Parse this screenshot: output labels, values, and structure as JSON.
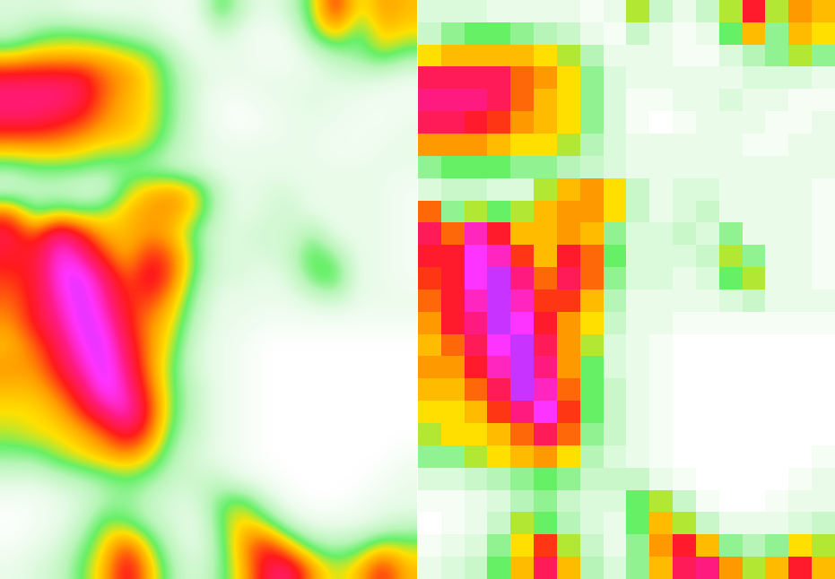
{
  "chart_data": [
    {
      "type": "heatmap",
      "clim": [
        0,
        10
      ],
      "tick_labels": false,
      "cells": [
        [
          1.5,
          1.5,
          1.5,
          1,
          1,
          1,
          1,
          0.5,
          1,
          4,
          2,
          1,
          2,
          4,
          7,
          4,
          5.5,
          5
        ],
        [
          2,
          3,
          3.5,
          3.5,
          3,
          2.5,
          2,
          1,
          0.5,
          2,
          1,
          0.5,
          1,
          3.5,
          5,
          3,
          5,
          4.5
        ],
        [
          4.5,
          5,
          5,
          5,
          5,
          4.5,
          4,
          2.5,
          1,
          1,
          1,
          0.5,
          0.5,
          1.5,
          2.5,
          3,
          4,
          3
        ],
        [
          7.5,
          7.5,
          7.5,
          7.5,
          6,
          5.5,
          4.5,
          3,
          1.5,
          1,
          1,
          1,
          1,
          1,
          1.5,
          1.5,
          1.5,
          1
        ],
        [
          8,
          8,
          8,
          7.5,
          6,
          5,
          4.5,
          3,
          1.5,
          0.5,
          0.5,
          1,
          1,
          1.5,
          1,
          1,
          0.5,
          0.5
        ],
        [
          7.5,
          7.5,
          7,
          6.5,
          5.5,
          5,
          4.5,
          3,
          1.5,
          0.5,
          0,
          0.5,
          1,
          1,
          1,
          0.5,
          0.5,
          1
        ],
        [
          5.5,
          5.5,
          5.5,
          5,
          4.5,
          4.5,
          4,
          2.5,
          1.5,
          1,
          1,
          1,
          1,
          1,
          0.5,
          0.5,
          1,
          1
        ],
        [
          3,
          3.5,
          3.5,
          3.5,
          3,
          3,
          2.5,
          2,
          1.5,
          1,
          1,
          1,
          1,
          1,
          1,
          1,
          1,
          1
        ],
        [
          1.5,
          2,
          2,
          1.5,
          1.5,
          4,
          5,
          5.5,
          4.5,
          2,
          1,
          1.5,
          1.5,
          1,
          1,
          1,
          1,
          0.5
        ],
        [
          6,
          3,
          4,
          3.5,
          4,
          5,
          5.5,
          5.5,
          4.5,
          2,
          1,
          1.5,
          2,
          1,
          1,
          1,
          1,
          0.5
        ],
        [
          7.5,
          6,
          8.5,
          7,
          5,
          5,
          5.5,
          5,
          3,
          1.5,
          1.5,
          2,
          1.5,
          3,
          1,
          1,
          1,
          0.5
        ],
        [
          7,
          7,
          9,
          8.5,
          6.5,
          5,
          7,
          6,
          3.5,
          1.5,
          1.5,
          1.5,
          2,
          4,
          3,
          1,
          1,
          0.5
        ],
        [
          6.5,
          7,
          9,
          9.5,
          8,
          6,
          7.5,
          6,
          3,
          1.5,
          1.5,
          1,
          1.5,
          3.5,
          4,
          1,
          1,
          0.5
        ],
        [
          6,
          7,
          8.5,
          9.5,
          8.5,
          6.5,
          6.5,
          5,
          2.5,
          1,
          1,
          1,
          1,
          1.5,
          2,
          1,
          1,
          1
        ],
        [
          5.5,
          7,
          8,
          9.5,
          9,
          7,
          5.5,
          4.5,
          2,
          1,
          1,
          0.5,
          0.5,
          0.5,
          0.5,
          0.5,
          0.5,
          0.5
        ],
        [
          5,
          6,
          7.5,
          9,
          9.5,
          7.5,
          5.5,
          4,
          1.5,
          1,
          0.5,
          0,
          0,
          0,
          0,
          0,
          0,
          0
        ],
        [
          5.5,
          5.5,
          7,
          8.5,
          9.5,
          8,
          5.5,
          3.5,
          1.5,
          1,
          0.5,
          0,
          0,
          0,
          0,
          0,
          0,
          0
        ],
        [
          5,
          5,
          6,
          7.5,
          9.5,
          8.5,
          6,
          3.5,
          2,
          1,
          0.5,
          0,
          0,
          0,
          0,
          0,
          0,
          0
        ],
        [
          4.5,
          4.5,
          5,
          6.5,
          8,
          9,
          6.5,
          3.5,
          2,
          1,
          0.5,
          0,
          0,
          0,
          0,
          0,
          0,
          0
        ],
        [
          4,
          4.5,
          4.5,
          5,
          6,
          7.5,
          6,
          3,
          2,
          1,
          0.5,
          0,
          0,
          0,
          0,
          0,
          0,
          0
        ],
        [
          3,
          3,
          4,
          4.5,
          5,
          5.5,
          4.5,
          2.5,
          1.5,
          1,
          0.5,
          0,
          0,
          0,
          0,
          0,
          0,
          0.5
        ],
        [
          1.5,
          1.5,
          2,
          2.5,
          3,
          3.5,
          3,
          2,
          2,
          2,
          1,
          0.5,
          0,
          0,
          0,
          0,
          0.5,
          1
        ],
        [
          0.5,
          0.5,
          1,
          1.5,
          2.5,
          3,
          2,
          1.5,
          1.5,
          3.5,
          4,
          2,
          0.5,
          0,
          0,
          0.5,
          1,
          1
        ],
        [
          0,
          0.5,
          1,
          2,
          4,
          3.5,
          2.5,
          1.5,
          1,
          3.5,
          5,
          4,
          2,
          1,
          1,
          1,
          1.5,
          2
        ],
        [
          0.5,
          1,
          1.5,
          3,
          4.5,
          6.5,
          4,
          2,
          1,
          3,
          5.5,
          7,
          5,
          3,
          2.5,
          3,
          4.5,
          4
        ],
        [
          1,
          1.5,
          2,
          3.5,
          5,
          7.5,
          5,
          2.5,
          1.5,
          3,
          5,
          7.5,
          8,
          5.5,
          4,
          5,
          7,
          5
        ]
      ]
    },
    {
      "type": "heatmap",
      "clim": [
        0,
        10
      ],
      "tick_labels": false,
      "cells": [
        [
          1.5,
          1.5,
          1.5,
          1,
          1,
          1,
          1,
          0.5,
          1,
          4,
          2,
          1,
          2,
          4,
          7,
          4,
          5.5,
          5
        ],
        [
          2,
          3,
          3.5,
          3.5,
          3,
          2.5,
          2,
          1,
          0.5,
          2,
          1,
          0.5,
          1,
          3.5,
          5,
          3,
          5,
          4.5
        ],
        [
          4.5,
          5,
          5,
          5,
          5,
          4.5,
          4,
          2.5,
          1,
          1,
          1,
          0.5,
          0.5,
          1.5,
          2.5,
          3,
          4,
          3
        ],
        [
          7.5,
          7.5,
          7.5,
          7.5,
          6,
          5.5,
          4.5,
          3,
          1.5,
          1,
          1,
          1,
          1,
          1,
          1.5,
          1.5,
          1.5,
          1
        ],
        [
          8,
          8,
          8,
          7.5,
          6,
          5,
          4.5,
          3,
          1.5,
          0.5,
          0.5,
          1,
          1,
          1.5,
          1,
          1,
          0.5,
          0.5
        ],
        [
          7.5,
          7.5,
          7,
          6.5,
          5.5,
          5,
          4.5,
          3,
          1.5,
          0.5,
          0,
          0.5,
          1,
          1,
          1,
          0.5,
          0.5,
          1
        ],
        [
          5.5,
          5.5,
          5.5,
          5,
          4.5,
          4.5,
          4,
          2.5,
          1.5,
          1,
          1,
          1,
          1,
          1,
          0.5,
          0.5,
          1,
          1
        ],
        [
          3,
          3.5,
          3.5,
          3.5,
          3,
          3,
          2.5,
          2,
          1.5,
          1,
          1,
          1,
          1,
          1,
          1,
          1,
          1,
          1
        ],
        [
          1.5,
          2,
          2,
          1.5,
          1.5,
          4,
          5,
          5.5,
          4.5,
          2,
          1,
          1.5,
          1.5,
          1,
          1,
          1,
          1,
          0.5
        ],
        [
          6,
          3,
          4,
          3.5,
          4,
          5,
          5.5,
          5.5,
          4.5,
          2,
          1,
          1.5,
          2,
          1,
          1,
          1,
          1,
          0.5
        ],
        [
          7.5,
          6,
          8.5,
          7,
          5,
          5,
          5.5,
          5,
          3,
          1.5,
          1.5,
          2,
          1.5,
          3,
          1,
          1,
          1,
          0.5
        ],
        [
          7,
          7,
          9,
          8.5,
          6.5,
          5,
          7,
          6,
          3.5,
          1.5,
          1.5,
          1.5,
          2,
          4,
          3,
          1,
          1,
          0.5
        ],
        [
          6.5,
          7,
          9,
          9.5,
          8,
          6,
          7.5,
          6,
          3,
          1.5,
          1.5,
          1,
          1.5,
          3.5,
          4,
          1,
          1,
          0.5
        ],
        [
          6,
          7,
          8.5,
          9.5,
          8.5,
          6.5,
          6.5,
          5,
          2.5,
          1,
          1,
          1,
          1,
          1.5,
          2,
          1,
          1,
          1
        ],
        [
          5.5,
          7,
          8,
          9.5,
          9,
          7,
          5.5,
          4.5,
          2,
          1,
          1,
          0.5,
          0.5,
          0.5,
          0.5,
          0.5,
          0.5,
          0.5
        ],
        [
          5,
          6,
          7.5,
          9,
          9.5,
          7.5,
          5.5,
          4,
          1.5,
          1,
          0.5,
          0,
          0,
          0,
          0,
          0,
          0,
          0
        ],
        [
          5.5,
          5.5,
          7,
          8.5,
          9.5,
          8,
          5.5,
          3.5,
          1.5,
          1,
          0.5,
          0,
          0,
          0,
          0,
          0,
          0,
          0
        ],
        [
          5,
          5,
          6,
          7.5,
          9.5,
          8.5,
          6,
          3.5,
          2,
          1,
          0.5,
          0,
          0,
          0,
          0,
          0,
          0,
          0
        ],
        [
          4.5,
          4.5,
          5,
          6.5,
          8,
          9,
          6.5,
          3.5,
          2,
          1,
          0.5,
          0,
          0,
          0,
          0,
          0,
          0,
          0
        ],
        [
          4,
          4.5,
          4.5,
          5,
          6,
          7.5,
          6,
          3,
          2,
          1,
          0.5,
          0,
          0,
          0,
          0,
          0,
          0,
          0
        ],
        [
          3,
          3,
          4,
          4.5,
          5,
          5.5,
          4.5,
          2.5,
          1.5,
          1,
          0.5,
          0,
          0,
          0,
          0,
          0,
          0,
          0.5
        ],
        [
          1.5,
          1.5,
          2,
          2.5,
          3,
          3.5,
          3,
          2,
          2,
          2,
          1,
          0.5,
          0,
          0,
          0,
          0,
          0.5,
          1
        ],
        [
          0.5,
          0.5,
          1,
          1.5,
          2.5,
          3,
          2,
          1.5,
          1.5,
          3.5,
          4,
          2,
          0.5,
          0,
          0,
          0.5,
          1,
          1
        ],
        [
          0,
          0.5,
          1,
          2,
          4,
          3.5,
          2.5,
          1.5,
          1,
          3.5,
          5,
          4,
          2,
          1,
          1,
          1,
          1.5,
          2
        ],
        [
          0.5,
          1,
          1.5,
          3,
          4.5,
          6.5,
          4,
          2,
          1,
          3,
          5.5,
          7,
          5,
          3,
          2.5,
          3,
          4.5,
          4
        ],
        [
          1,
          1.5,
          2,
          3.5,
          5,
          7.5,
          5,
          2.5,
          1.5,
          3,
          5,
          7.5,
          8,
          5.5,
          4,
          5,
          7,
          5
        ]
      ]
    }
  ]
}
